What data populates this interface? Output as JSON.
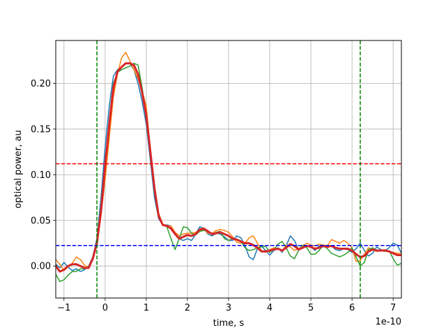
{
  "chart_data": {
    "type": "line",
    "title": "",
    "xlabel": "time, s",
    "ylabel": "optical power, au",
    "x_offset_text": "1e-10",
    "xlim": [
      -1.2,
      7.2
    ],
    "ylim": [
      -0.035,
      0.247
    ],
    "x_scale_factor": 1e-10,
    "grid": true,
    "x_ticks": [
      -1,
      0,
      1,
      2,
      3,
      4,
      5,
      6,
      7
    ],
    "x_tick_labels": [
      "−1",
      "0",
      "1",
      "2",
      "3",
      "4",
      "5",
      "6",
      "7"
    ],
    "y_ticks": [
      0.0,
      0.05,
      0.1,
      0.15,
      0.2
    ],
    "y_tick_labels": [
      "0.00",
      "0.05",
      "0.10",
      "0.15",
      "0.20"
    ],
    "series": [
      {
        "color": "#1f77b4",
        "linewidth": 1.5,
        "x": [
          -1.2,
          -1.1,
          -1.0,
          -0.9,
          -0.8,
          -0.7,
          -0.6,
          -0.5,
          -0.4,
          -0.3,
          -0.2,
          -0.1,
          0.0,
          0.1,
          0.2,
          0.3,
          0.4,
          0.5,
          0.6,
          0.7,
          0.8,
          0.9,
          1.0,
          1.1,
          1.2,
          1.3,
          1.4,
          1.5,
          1.6,
          1.7,
          1.8,
          1.9,
          2.0,
          2.1,
          2.2,
          2.3,
          2.4,
          2.5,
          2.6,
          2.7,
          2.8,
          2.9,
          3.0,
          3.1,
          3.2,
          3.3,
          3.4,
          3.5,
          3.6,
          3.7,
          3.8,
          3.9,
          4.0,
          4.1,
          4.2,
          4.3,
          4.4,
          4.5,
          4.6,
          4.7,
          4.8,
          4.9,
          5.0,
          5.1,
          5.2,
          5.3,
          5.4,
          5.5,
          5.6,
          5.7,
          5.8,
          5.9,
          6.0,
          6.1,
          6.2,
          6.3,
          6.4,
          6.5,
          6.6,
          6.7,
          6.8,
          6.9,
          7.0,
          7.1,
          7.2
        ],
        "y": [
          0.002,
          -0.002,
          0.004,
          -0.001,
          -0.005,
          -0.003,
          -0.006,
          -0.004,
          0.0,
          0.01,
          0.03,
          0.075,
          0.13,
          0.175,
          0.208,
          0.215,
          0.218,
          0.222,
          0.222,
          0.215,
          0.2,
          0.18,
          0.155,
          0.115,
          0.075,
          0.052,
          0.045,
          0.045,
          0.044,
          0.035,
          0.03,
          0.028,
          0.03,
          0.028,
          0.035,
          0.043,
          0.041,
          0.035,
          0.033,
          0.036,
          0.035,
          0.032,
          0.028,
          0.028,
          0.033,
          0.031,
          0.022,
          0.01,
          0.007,
          0.019,
          0.022,
          0.017,
          0.012,
          0.017,
          0.02,
          0.015,
          0.022,
          0.033,
          0.028,
          0.018,
          0.02,
          0.022,
          0.021,
          0.017,
          0.022,
          0.021,
          0.021,
          0.022,
          0.018,
          0.017,
          0.019,
          0.018,
          0.015,
          0.019,
          0.025,
          0.017,
          0.011,
          0.014,
          0.021,
          0.018,
          0.017,
          0.02,
          0.025,
          0.023,
          0.014
        ]
      },
      {
        "color": "#ff7f0e",
        "linewidth": 1.5,
        "x": [
          -1.2,
          -1.1,
          -1.0,
          -0.9,
          -0.8,
          -0.7,
          -0.6,
          -0.5,
          -0.4,
          -0.3,
          -0.2,
          -0.1,
          0.0,
          0.1,
          0.2,
          0.3,
          0.4,
          0.5,
          0.6,
          0.7,
          0.8,
          0.9,
          1.0,
          1.1,
          1.2,
          1.3,
          1.4,
          1.5,
          1.6,
          1.7,
          1.8,
          1.9,
          2.0,
          2.1,
          2.2,
          2.3,
          2.4,
          2.5,
          2.6,
          2.7,
          2.8,
          2.9,
          3.0,
          3.1,
          3.2,
          3.3,
          3.4,
          3.5,
          3.6,
          3.7,
          3.8,
          3.9,
          4.0,
          4.1,
          4.2,
          4.3,
          4.4,
          4.5,
          4.6,
          4.7,
          4.8,
          4.9,
          5.0,
          5.1,
          5.2,
          5.3,
          5.4,
          5.5,
          5.6,
          5.7,
          5.8,
          5.9,
          6.0,
          6.1,
          6.2,
          6.3,
          6.4,
          6.5,
          6.6,
          6.7,
          6.8,
          6.9,
          7.0,
          7.1,
          7.2
        ],
        "y": [
          0.007,
          0.002,
          -0.005,
          -0.001,
          0.003,
          0.01,
          0.007,
          0.001,
          -0.002,
          0.008,
          0.025,
          0.055,
          0.095,
          0.14,
          0.185,
          0.21,
          0.228,
          0.234,
          0.225,
          0.215,
          0.205,
          0.192,
          0.175,
          0.128,
          0.085,
          0.058,
          0.046,
          0.044,
          0.044,
          0.037,
          0.033,
          0.035,
          0.036,
          0.036,
          0.037,
          0.039,
          0.04,
          0.036,
          0.036,
          0.039,
          0.04,
          0.039,
          0.037,
          0.032,
          0.026,
          0.025,
          0.025,
          0.031,
          0.033,
          0.025,
          0.017,
          0.015,
          0.018,
          0.02,
          0.019,
          0.016,
          0.023,
          0.021,
          0.017,
          0.019,
          0.022,
          0.025,
          0.023,
          0.022,
          0.024,
          0.023,
          0.022,
          0.029,
          0.027,
          0.025,
          0.028,
          0.025,
          0.02,
          0.005,
          0.006,
          0.013,
          0.02,
          0.018,
          0.016,
          0.017,
          0.018,
          0.016,
          0.015,
          0.014,
          0.014
        ]
      },
      {
        "color": "#2ca02c",
        "linewidth": 1.5,
        "x": [
          -1.2,
          -1.1,
          -1.0,
          -0.9,
          -0.8,
          -0.7,
          -0.6,
          -0.5,
          -0.4,
          -0.3,
          -0.2,
          -0.1,
          0.0,
          0.1,
          0.2,
          0.3,
          0.4,
          0.5,
          0.6,
          0.7,
          0.8,
          0.9,
          1.0,
          1.1,
          1.2,
          1.3,
          1.4,
          1.5,
          1.6,
          1.7,
          1.8,
          1.9,
          2.0,
          2.1,
          2.2,
          2.3,
          2.4,
          2.5,
          2.6,
          2.7,
          2.8,
          2.9,
          3.0,
          3.1,
          3.2,
          3.3,
          3.4,
          3.5,
          3.6,
          3.7,
          3.8,
          3.9,
          4.0,
          4.1,
          4.2,
          4.3,
          4.4,
          4.5,
          4.6,
          4.7,
          4.8,
          4.9,
          5.0,
          5.1,
          5.2,
          5.3,
          5.4,
          5.5,
          5.6,
          5.7,
          5.8,
          5.9,
          6.0,
          6.1,
          6.2,
          6.3,
          6.4,
          6.5,
          6.6,
          6.7,
          6.8,
          6.9,
          7.0,
          7.1,
          7.2
        ],
        "y": [
          -0.009,
          -0.017,
          -0.015,
          -0.01,
          -0.006,
          -0.006,
          -0.003,
          -0.003,
          -0.002,
          0.008,
          0.025,
          0.06,
          0.11,
          0.16,
          0.2,
          0.212,
          0.215,
          0.217,
          0.219,
          0.222,
          0.22,
          0.195,
          0.165,
          0.125,
          0.085,
          0.056,
          0.045,
          0.043,
          0.03,
          0.018,
          0.03,
          0.043,
          0.042,
          0.036,
          0.034,
          0.038,
          0.039,
          0.038,
          0.035,
          0.037,
          0.038,
          0.03,
          0.028,
          0.03,
          0.029,
          0.027,
          0.02,
          0.017,
          0.018,
          0.02,
          0.021,
          0.022,
          0.015,
          0.018,
          0.024,
          0.027,
          0.02,
          0.011,
          0.008,
          0.017,
          0.023,
          0.02,
          0.013,
          0.013,
          0.017,
          0.023,
          0.019,
          0.014,
          0.012,
          0.01,
          0.012,
          0.015,
          0.02,
          0.01,
          0.0,
          0.004,
          0.018,
          0.02,
          0.017,
          0.017,
          0.016,
          0.017,
          0.008,
          0.001,
          0.003
        ]
      },
      {
        "color": "#d62728",
        "linewidth": 3,
        "x": [
          -1.2,
          -1.1,
          -1.0,
          -0.9,
          -0.8,
          -0.7,
          -0.6,
          -0.5,
          -0.4,
          -0.3,
          -0.2,
          -0.1,
          0.0,
          0.1,
          0.2,
          0.3,
          0.4,
          0.5,
          0.6,
          0.7,
          0.8,
          0.9,
          1.0,
          1.1,
          1.2,
          1.3,
          1.4,
          1.5,
          1.6,
          1.7,
          1.8,
          1.9,
          2.0,
          2.1,
          2.2,
          2.3,
          2.4,
          2.5,
          2.6,
          2.7,
          2.8,
          2.9,
          3.0,
          3.1,
          3.2,
          3.3,
          3.4,
          3.5,
          3.6,
          3.7,
          3.8,
          3.9,
          4.0,
          4.1,
          4.2,
          4.3,
          4.4,
          4.5,
          4.6,
          4.7,
          4.8,
          4.9,
          5.0,
          5.1,
          5.2,
          5.3,
          5.4,
          5.5,
          5.6,
          5.7,
          5.8,
          5.9,
          6.0,
          6.1,
          6.2,
          6.3,
          6.4,
          6.5,
          6.6,
          6.7,
          6.8,
          6.9,
          7.0,
          7.1,
          7.2
        ],
        "y": [
          0.0,
          -0.006,
          -0.004,
          0.0,
          0.002,
          0.002,
          0.0,
          -0.002,
          -0.002,
          0.008,
          0.025,
          0.06,
          0.11,
          0.155,
          0.195,
          0.213,
          0.218,
          0.222,
          0.222,
          0.22,
          0.21,
          0.19,
          0.165,
          0.125,
          0.085,
          0.055,
          0.045,
          0.044,
          0.041,
          0.035,
          0.03,
          0.032,
          0.034,
          0.033,
          0.035,
          0.04,
          0.041,
          0.038,
          0.035,
          0.036,
          0.037,
          0.035,
          0.033,
          0.03,
          0.029,
          0.027,
          0.025,
          0.025,
          0.023,
          0.02,
          0.016,
          0.016,
          0.017,
          0.018,
          0.019,
          0.017,
          0.02,
          0.024,
          0.022,
          0.018,
          0.02,
          0.022,
          0.021,
          0.019,
          0.02,
          0.022,
          0.021,
          0.022,
          0.02,
          0.019,
          0.019,
          0.019,
          0.017,
          0.013,
          0.01,
          0.011,
          0.016,
          0.018,
          0.017,
          0.017,
          0.017,
          0.016,
          0.014,
          0.012,
          0.012
        ]
      }
    ],
    "reference_lines": [
      {
        "orientation": "horizontal",
        "value": 0.112,
        "color": "#ff0000",
        "style": "dashed"
      },
      {
        "orientation": "horizontal",
        "value": 0.0225,
        "color": "#0000ff",
        "style": "dashed"
      },
      {
        "orientation": "vertical",
        "value": -0.2,
        "color": "#008000",
        "style": "dashed"
      },
      {
        "orientation": "vertical",
        "value": 6.2,
        "color": "#008000",
        "style": "dashed"
      }
    ]
  }
}
